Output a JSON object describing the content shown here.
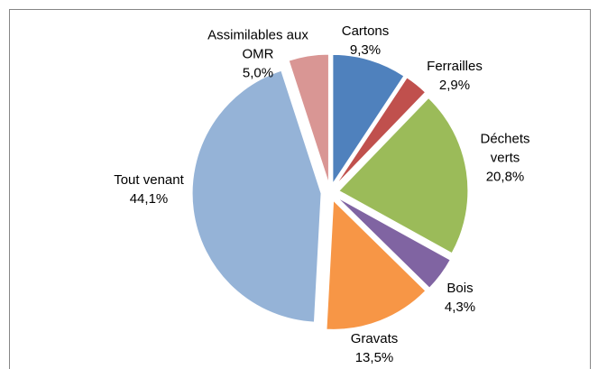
{
  "chart_data": {
    "type": "pie",
    "categories": [
      "Cartons",
      "Ferrailles",
      "Déchets verts",
      "Bois",
      "Gravats",
      "Tout venant",
      "Assimilables aux OMR"
    ],
    "values": [
      9.3,
      2.9,
      20.8,
      4.3,
      13.5,
      44.1,
      5.0
    ],
    "value_labels": [
      "9,3%",
      "2,9%",
      "20,8%",
      "4,3%",
      "13,5%",
      "44,1%",
      "5,0%"
    ],
    "colors": [
      "#4F81BD",
      "#C0504D",
      "#9BBB59",
      "#8064A2",
      "#F79646",
      "#95B3D7",
      "#D99694"
    ]
  }
}
